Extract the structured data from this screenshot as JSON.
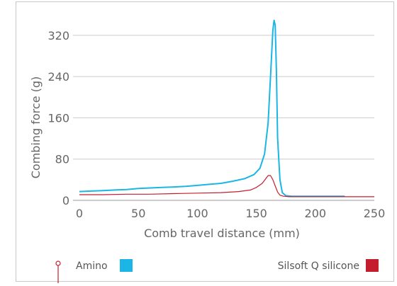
{
  "chart_data": {
    "type": "line",
    "title": "",
    "xlabel": "Comb travel distance (mm)",
    "ylabel": "Combing force (g)",
    "xlim": [
      0,
      250
    ],
    "ylim": [
      0,
      350
    ],
    "xticks": [
      0,
      50,
      100,
      150,
      200,
      250
    ],
    "yticks": [
      0,
      80,
      160,
      240,
      320
    ],
    "grid": "horizontal",
    "legend_position": "bottom",
    "series": [
      {
        "name": "Amino",
        "color": "#1bb6e6",
        "x": [
          0,
          10,
          20,
          30,
          40,
          50,
          60,
          70,
          80,
          90,
          100,
          110,
          120,
          130,
          140,
          148,
          153,
          157,
          160,
          162,
          164,
          165,
          166,
          167,
          168,
          170,
          172,
          175,
          180,
          190,
          200,
          225
        ],
        "y": [
          17,
          18,
          19,
          20,
          21,
          23,
          24,
          25,
          26,
          27,
          29,
          31,
          33,
          37,
          42,
          50,
          62,
          90,
          150,
          240,
          330,
          349,
          340,
          250,
          120,
          40,
          15,
          9,
          8,
          8,
          8,
          8
        ]
      },
      {
        "name": "Silsoft Q silicone",
        "color": "#c41e2e",
        "x": [
          0,
          20,
          40,
          60,
          80,
          100,
          120,
          135,
          145,
          150,
          155,
          158,
          160,
          162,
          164,
          166,
          168,
          170,
          173,
          178,
          185,
          200,
          230,
          250
        ],
        "y": [
          11,
          11,
          12,
          12,
          13,
          14,
          15,
          17,
          20,
          25,
          33,
          42,
          48,
          48,
          40,
          28,
          16,
          10,
          8,
          7,
          7,
          7,
          7,
          7
        ]
      }
    ]
  }
}
